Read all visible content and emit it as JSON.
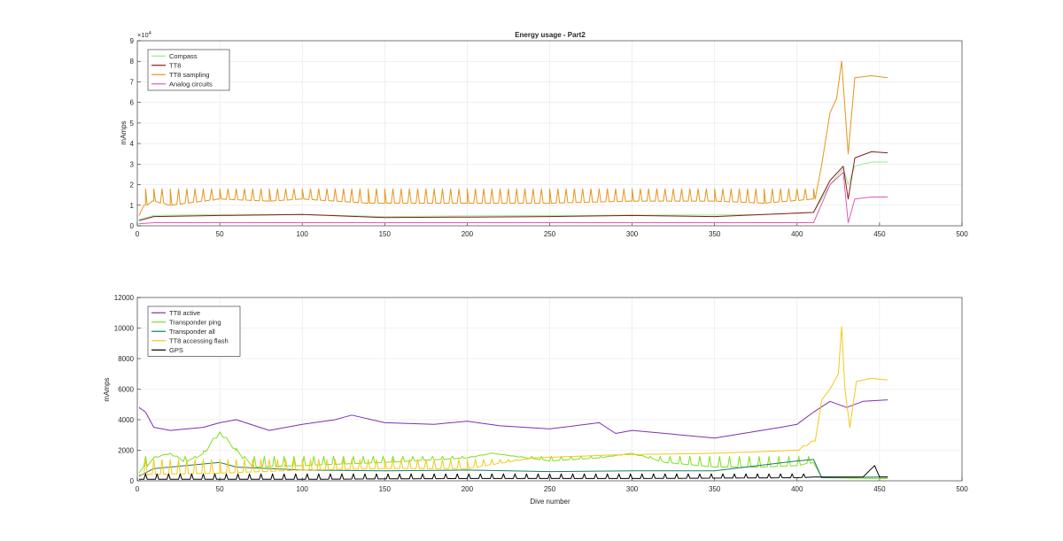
{
  "figure": {
    "title": "Energy usage - Part2"
  },
  "chart_data": [
    {
      "type": "line",
      "title": "Energy usage - Part2",
      "xlabel": "",
      "ylabel": "mAmps",
      "xlim": [
        0,
        500
      ],
      "ylim": [
        0,
        90000
      ],
      "xticks": [
        0,
        50,
        100,
        150,
        200,
        250,
        300,
        350,
        400,
        450,
        500
      ],
      "yticks": [
        0,
        1,
        2,
        3,
        4,
        5,
        6,
        7,
        8,
        9
      ],
      "yscale_label": "×10",
      "yscale_exp": "4",
      "ytick_multiplier": 10000,
      "grid": true,
      "legend_position": "top-left",
      "series": [
        {
          "name": "Compass",
          "color": "#90ee90",
          "points": [
            [
              1,
              3000
            ],
            [
              10,
              5000
            ],
            [
              50,
              5500
            ],
            [
              100,
              5500
            ],
            [
              150,
              4500
            ],
            [
              200,
              4800
            ],
            [
              250,
              5000
            ],
            [
              300,
              5200
            ],
            [
              350,
              5200
            ],
            [
              380,
              5500
            ],
            [
              410,
              6500
            ],
            [
              420,
              20000
            ],
            [
              428,
              28000
            ],
            [
              431,
              20000
            ],
            [
              435,
              29000
            ],
            [
              445,
              31000
            ],
            [
              455,
              31000
            ]
          ]
        },
        {
          "name": "TT8",
          "color": "#8b1a1a",
          "points": [
            [
              1,
              2500
            ],
            [
              10,
              4500
            ],
            [
              50,
              5000
            ],
            [
              100,
              5500
            ],
            [
              150,
              4000
            ],
            [
              200,
              4200
            ],
            [
              250,
              4500
            ],
            [
              300,
              5000
            ],
            [
              350,
              4500
            ],
            [
              380,
              5500
            ],
            [
              410,
              6500
            ],
            [
              420,
              22000
            ],
            [
              428,
              29000
            ],
            [
              431,
              13000
            ],
            [
              435,
              33000
            ],
            [
              445,
              36000
            ],
            [
              455,
              35500
            ]
          ]
        },
        {
          "name": "TT8 sampling",
          "color": "#e8941a",
          "points": [
            [
              1,
              5000
            ],
            [
              5,
              10000
            ],
            [
              10,
              12000
            ],
            [
              20,
              10000
            ],
            [
              50,
              13000
            ],
            [
              80,
              12000
            ],
            [
              100,
              13000
            ],
            [
              140,
              11000
            ],
            [
              150,
              11000
            ],
            [
              200,
              11000
            ],
            [
              250,
              11000
            ],
            [
              300,
              12000
            ],
            [
              350,
              12000
            ],
            [
              380,
              11000
            ],
            [
              410,
              13000
            ],
            [
              415,
              30000
            ],
            [
              420,
              55000
            ],
            [
              424,
              62000
            ],
            [
              427,
              80000
            ],
            [
              431,
              35000
            ],
            [
              435,
              72000
            ],
            [
              445,
              73000
            ],
            [
              455,
              72000
            ]
          ],
          "spikes": {
            "start": 5,
            "end": 410,
            "step": 5,
            "base": 10000,
            "peak": 18000
          }
        },
        {
          "name": "Analog circuits",
          "color": "#e05ab4",
          "points": [
            [
              1,
              1000
            ],
            [
              10,
              1500
            ],
            [
              50,
              1500
            ],
            [
              100,
              1500
            ],
            [
              200,
              1500
            ],
            [
              300,
              1500
            ],
            [
              410,
              1500
            ],
            [
              420,
              20000
            ],
            [
              428,
              26000
            ],
            [
              431,
              1500
            ],
            [
              435,
              13000
            ],
            [
              445,
              14000
            ],
            [
              455,
              14000
            ]
          ]
        }
      ]
    },
    {
      "type": "line",
      "title": "",
      "xlabel": "Dive number",
      "ylabel": "mAmps",
      "xlim": [
        0,
        500
      ],
      "ylim": [
        0,
        12000
      ],
      "xticks": [
        0,
        50,
        100,
        150,
        200,
        250,
        300,
        350,
        400,
        450,
        500
      ],
      "yticks": [
        0,
        2000,
        4000,
        6000,
        8000,
        10000,
        12000
      ],
      "grid": true,
      "legend_position": "top-left",
      "series": [
        {
          "name": "TT8 active",
          "color": "#7e2fb4",
          "points": [
            [
              1,
              4800
            ],
            [
              5,
              4500
            ],
            [
              10,
              3500
            ],
            [
              20,
              3300
            ],
            [
              40,
              3500
            ],
            [
              50,
              3800
            ],
            [
              60,
              4000
            ],
            [
              80,
              3300
            ],
            [
              100,
              3700
            ],
            [
              120,
              4000
            ],
            [
              130,
              4300
            ],
            [
              150,
              3800
            ],
            [
              180,
              3700
            ],
            [
              200,
              3900
            ],
            [
              220,
              3600
            ],
            [
              250,
              3400
            ],
            [
              280,
              3800
            ],
            [
              290,
              3100
            ],
            [
              300,
              3300
            ],
            [
              350,
              2800
            ],
            [
              390,
              3500
            ],
            [
              400,
              3700
            ],
            [
              410,
              4500
            ],
            [
              420,
              5200
            ],
            [
              430,
              4800
            ],
            [
              440,
              5200
            ],
            [
              455,
              5300
            ]
          ]
        },
        {
          "name": "Transponder ping",
          "color": "#7fe020",
          "points": [
            [
              1,
              500
            ],
            [
              10,
              1500
            ],
            [
              20,
              1800
            ],
            [
              30,
              1200
            ],
            [
              40,
              1800
            ],
            [
              50,
              3200
            ],
            [
              60,
              2000
            ],
            [
              70,
              900
            ],
            [
              100,
              1000
            ],
            [
              150,
              1200
            ],
            [
              200,
              1500
            ],
            [
              215,
              1800
            ],
            [
              250,
              1300
            ],
            [
              280,
              1500
            ],
            [
              300,
              1800
            ],
            [
              320,
              1200
            ],
            [
              350,
              900
            ],
            [
              380,
              900
            ],
            [
              400,
              1000
            ],
            [
              410,
              1200
            ],
            [
              415,
              200
            ],
            [
              450,
              150
            ],
            [
              455,
              150
            ]
          ],
          "spikes": {
            "start": 5,
            "end": 410,
            "step": 6,
            "base": 700,
            "peak": 1600
          }
        },
        {
          "name": "Transponder all",
          "color": "#1a7a6a",
          "points": [
            [
              1,
              300
            ],
            [
              10,
              800
            ],
            [
              50,
              1200
            ],
            [
              60,
              900
            ],
            [
              100,
              700
            ],
            [
              150,
              650
            ],
            [
              200,
              700
            ],
            [
              250,
              600
            ],
            [
              300,
              650
            ],
            [
              350,
              650
            ],
            [
              400,
              1300
            ],
            [
              410,
              1400
            ],
            [
              415,
              200
            ],
            [
              450,
              250
            ],
            [
              455,
              250
            ]
          ]
        },
        {
          "name": "TT8 accessing flash",
          "color": "#f2c81a",
          "points": [
            [
              1,
              400
            ],
            [
              50,
              500
            ],
            [
              100,
              700
            ],
            [
              150,
              800
            ],
            [
              200,
              800
            ],
            [
              240,
              1500
            ],
            [
              290,
              1700
            ],
            [
              350,
              1800
            ],
            [
              400,
              2000
            ],
            [
              410,
              2600
            ],
            [
              415,
              5300
            ],
            [
              420,
              6000
            ],
            [
              425,
              7000
            ],
            [
              427,
              10100
            ],
            [
              429,
              6000
            ],
            [
              432,
              3500
            ],
            [
              436,
              6500
            ],
            [
              445,
              6700
            ],
            [
              455,
              6600
            ]
          ],
          "spikes": {
            "start": 5,
            "end": 410,
            "step": 5,
            "base": 500,
            "peak": 1400
          }
        },
        {
          "name": "GPS",
          "color": "#000000",
          "points": [
            [
              1,
              100
            ],
            [
              100,
              100
            ],
            [
              200,
              150
            ],
            [
              300,
              150
            ],
            [
              400,
              200
            ],
            [
              410,
              250
            ],
            [
              440,
              250
            ],
            [
              447,
              1000
            ],
            [
              450,
              250
            ],
            [
              455,
              250
            ]
          ],
          "spikes": {
            "start": 5,
            "end": 410,
            "step": 7,
            "base": 50,
            "peak": 450
          }
        }
      ]
    }
  ]
}
